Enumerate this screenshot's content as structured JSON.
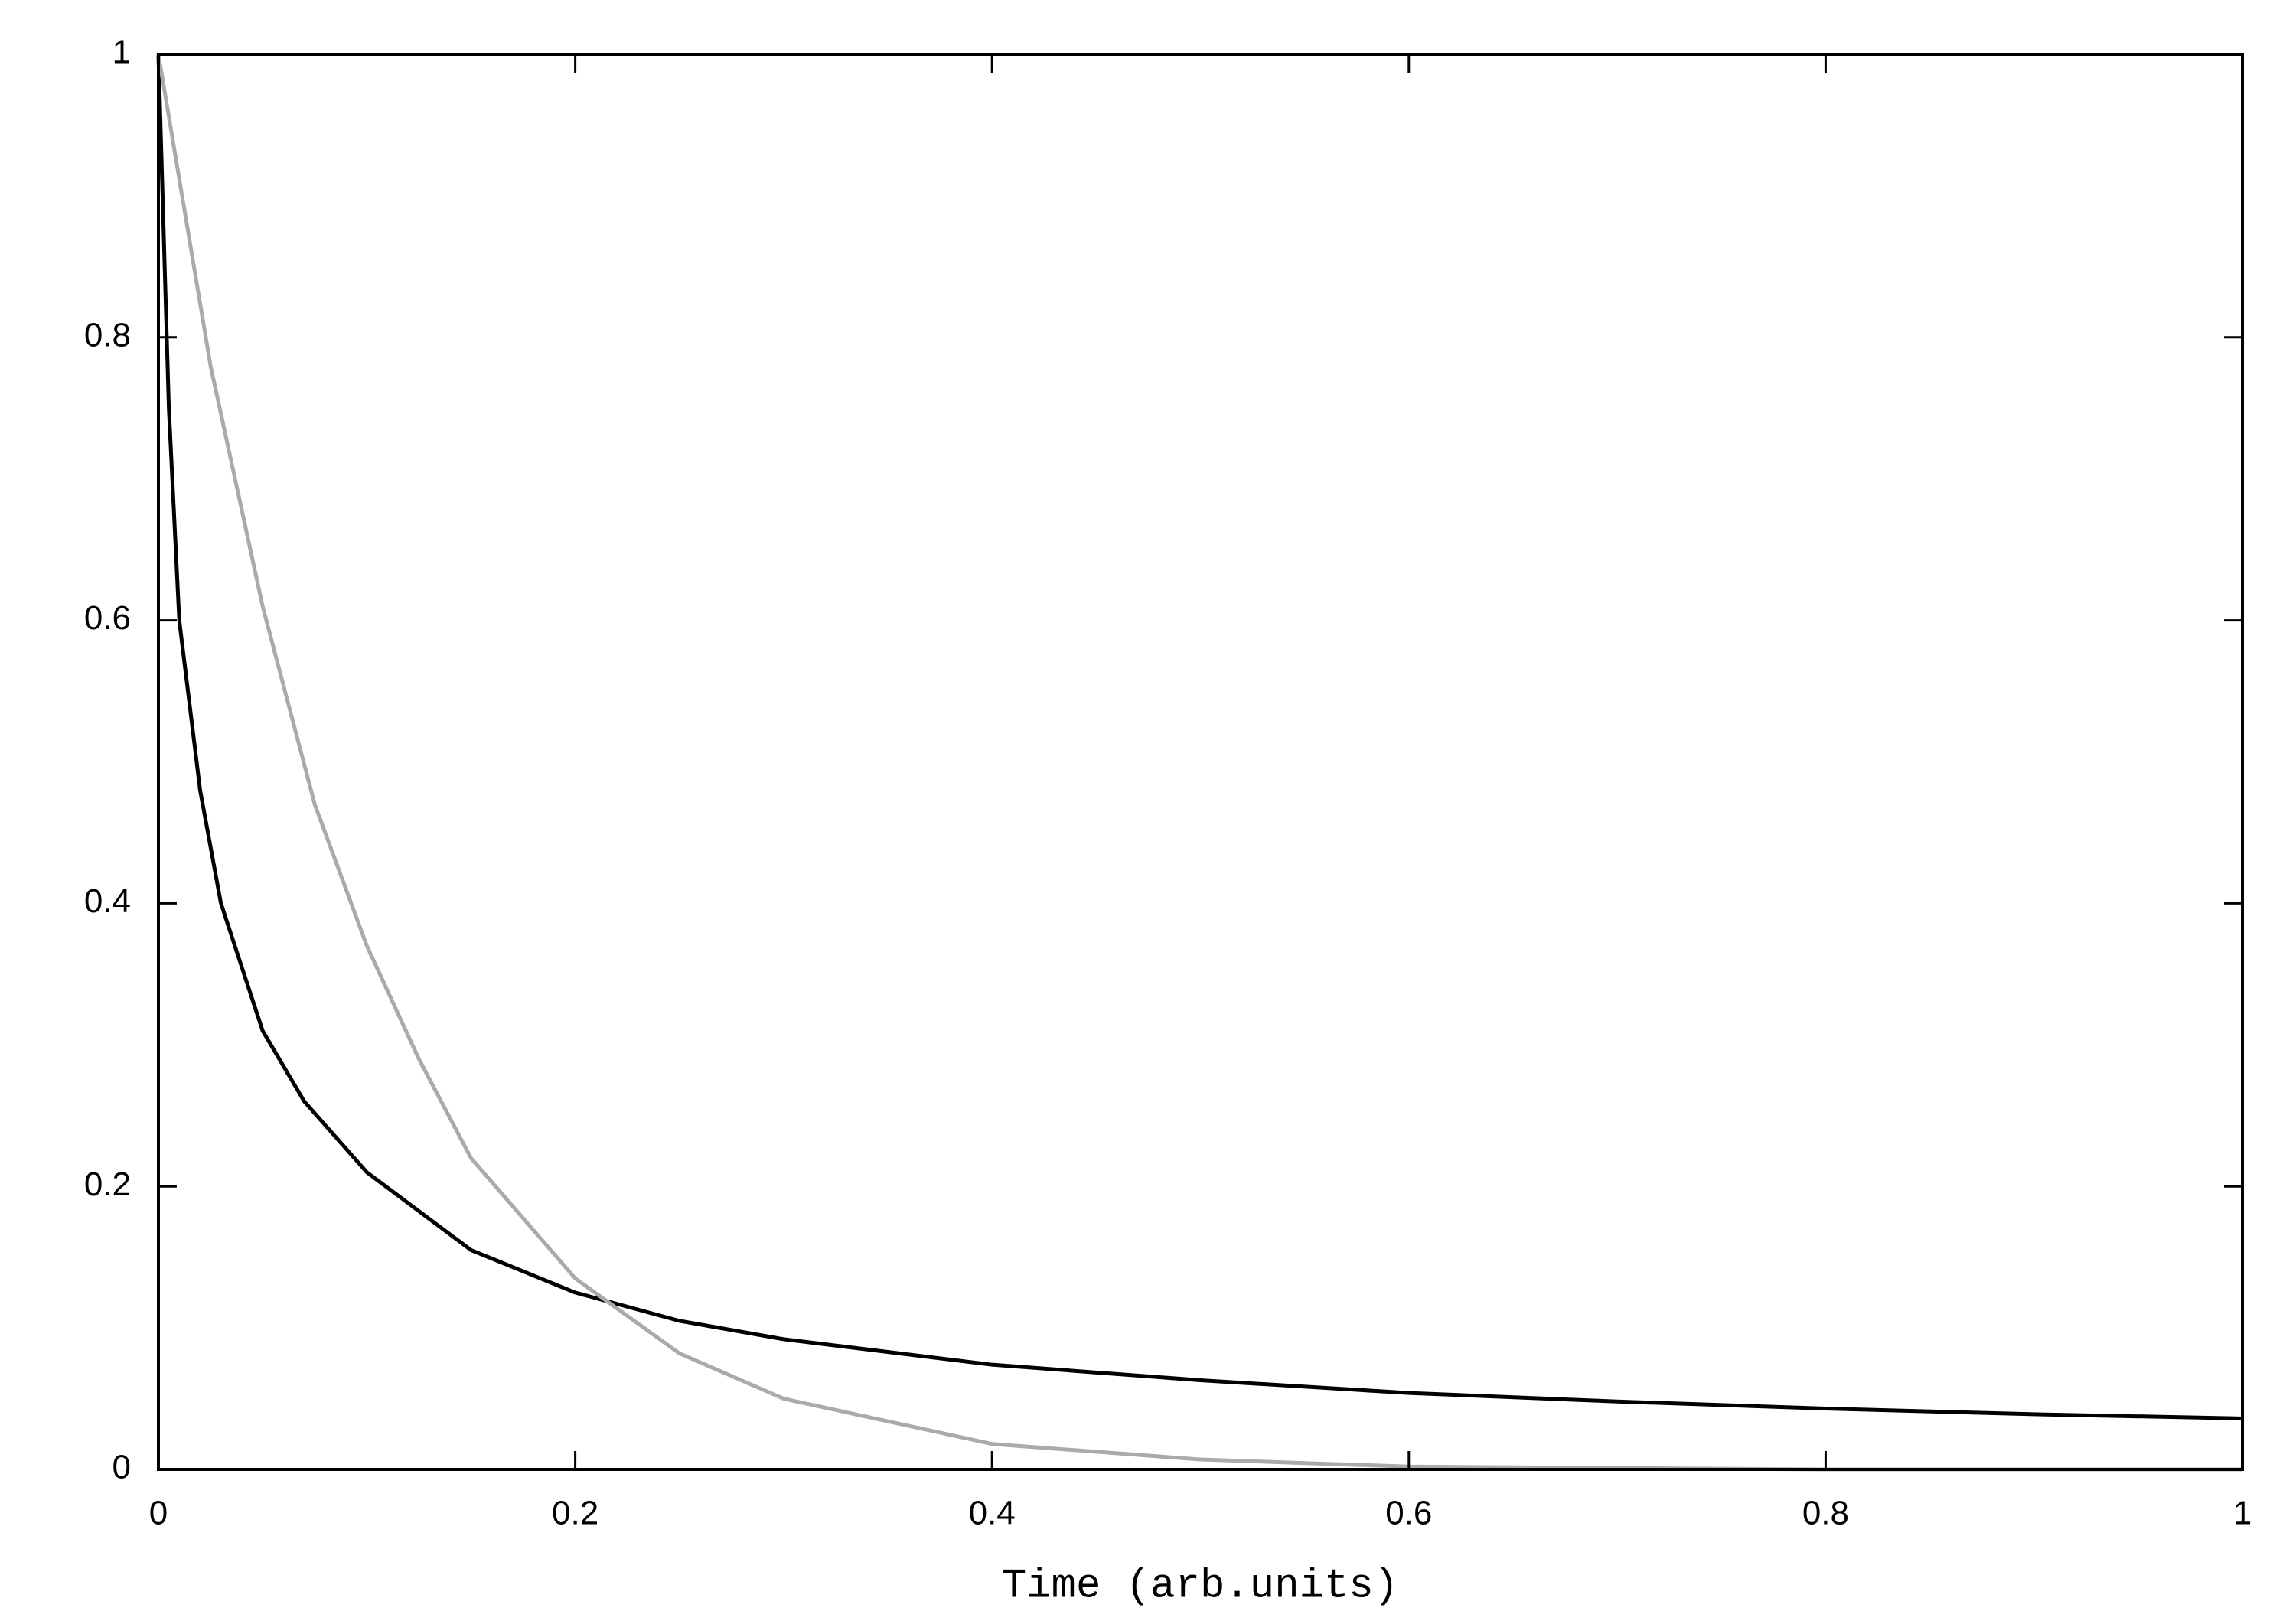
{
  "chart_data": {
    "type": "line",
    "x_label": "Time (arb.units)",
    "xlim": [
      0,
      1
    ],
    "ylim": [
      0,
      1
    ],
    "xticks": [
      0,
      0.2,
      0.4,
      0.6,
      0.8,
      1
    ],
    "yticks": [
      0,
      0.2,
      0.4,
      0.6,
      0.8,
      1
    ],
    "grid": false,
    "series": [
      {
        "color": "#000000",
        "x": [
          0,
          0.005,
          0.01,
          0.02,
          0.03,
          0.05,
          0.07,
          0.1,
          0.15,
          0.2,
          0.25,
          0.3,
          0.4,
          0.5,
          0.6,
          0.7,
          0.8,
          0.9,
          1
        ],
        "values": [
          1,
          0.75,
          0.6,
          0.48,
          0.4,
          0.31,
          0.26,
          0.21,
          0.155,
          0.125,
          0.105,
          0.092,
          0.074,
          0.063,
          0.054,
          0.048,
          0.043,
          0.039,
          0.036
        ]
      },
      {
        "color": "#aaaaaa",
        "x": [
          0,
          0.025,
          0.05,
          0.075,
          0.1,
          0.125,
          0.15,
          0.2,
          0.25,
          0.3,
          0.4,
          0.5,
          0.6,
          0.7,
          0.8,
          0.9,
          1
        ],
        "values": [
          1,
          0.78,
          0.61,
          0.47,
          0.37,
          0.29,
          0.22,
          0.135,
          0.082,
          0.05,
          0.018,
          0.007,
          0.002,
          0.001,
          0,
          0,
          0
        ]
      }
    ]
  }
}
